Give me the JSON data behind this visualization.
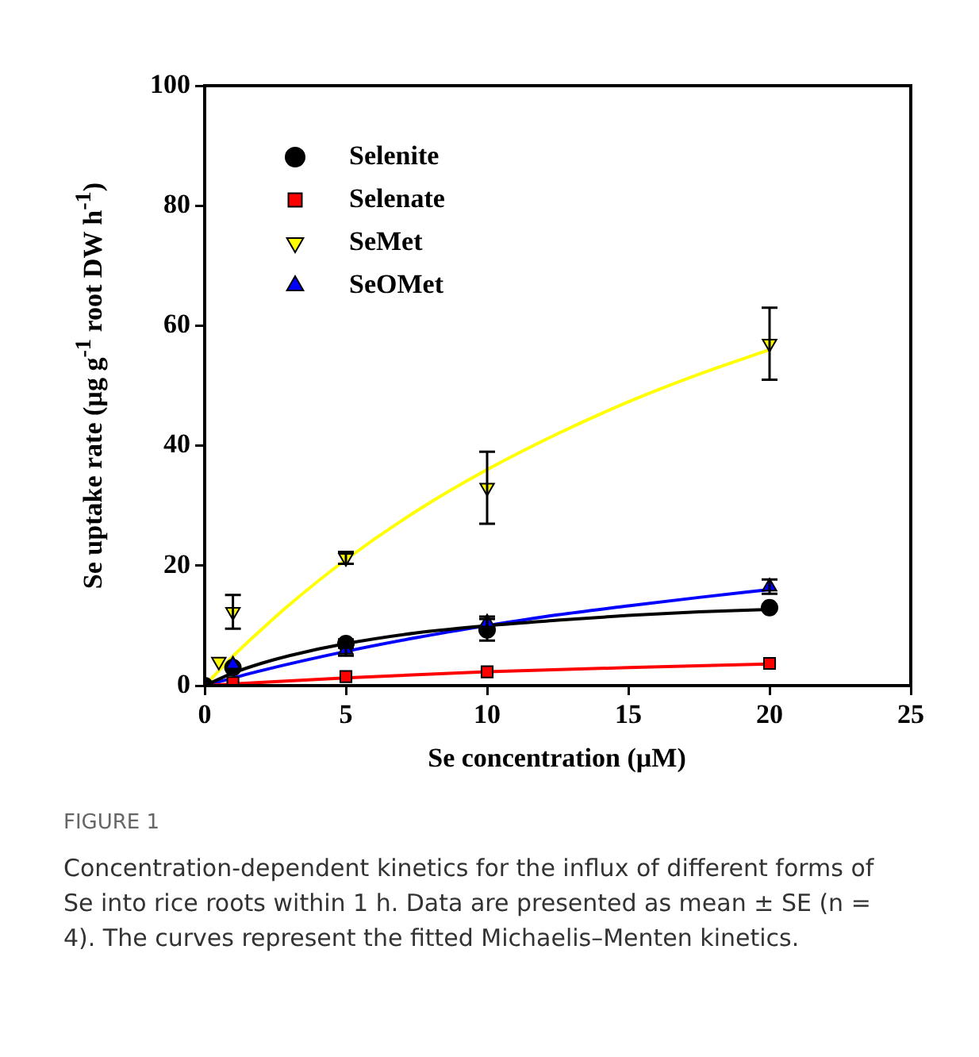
{
  "chart_data": {
    "type": "scatter",
    "xlabel": "Se concentration (µM)",
    "ylabel": "Se uptake rate (µg g$^{-1}$ root DW h$^{-1}$)",
    "xlim": [
      0,
      25
    ],
    "xticks": [
      0,
      5,
      10,
      15,
      20,
      25
    ],
    "ylim": [
      0,
      100
    ],
    "yticks": [
      0,
      20,
      40,
      60,
      80,
      100
    ],
    "legend": "top left",
    "series": [
      {
        "type": "scatter",
        "name": "Selenite",
        "color": "#000000",
        "marker": "circle",
        "x": [
          0,
          1,
          5,
          10,
          20
        ],
        "values": [
          0,
          3,
          7,
          9.3,
          13
        ],
        "errors": [
          null,
          null,
          0.7,
          1.8,
          null
        ]
      },
      {
        "type": "scatter",
        "name": "Selenate",
        "color": "#ff0000",
        "marker": "square",
        "x": [
          1,
          5,
          10,
          20
        ],
        "values": [
          0.5,
          1.5,
          2.3,
          3.7
        ],
        "errors": [
          null,
          null,
          null,
          null
        ]
      },
      {
        "type": "scatter",
        "name": "SeMet",
        "color": "#ffff00",
        "marker": "triangle-down",
        "x": [
          0.5,
          1,
          5,
          10,
          20
        ],
        "values": [
          4,
          12.3,
          21.3,
          33,
          57
        ],
        "errors": [
          null,
          2.8,
          1,
          6,
          6
        ]
      },
      {
        "type": "scatter",
        "name": "SeOMet",
        "color": "#0000ff",
        "marker": "triangle",
        "x": [
          1,
          5,
          10,
          20
        ],
        "values": [
          3.5,
          6,
          10.5,
          16.5
        ],
        "errors": [
          null,
          1,
          1,
          1.2
        ]
      },
      {
        "type": "line",
        "color": "#000000",
        "marker": "none",
        "x": [
          0,
          1,
          2,
          3,
          5,
          7.5,
          10,
          12.5,
          15,
          17.5,
          20
        ],
        "values": [
          0,
          2.1,
          3.7,
          5,
          7,
          8.8,
          10,
          10.9,
          11.7,
          12.3,
          12.7
        ]
      },
      {
        "type": "line",
        "color": "#ff0000",
        "marker": "none",
        "x": [
          0,
          5,
          10,
          15,
          20
        ],
        "values": [
          0,
          1.3,
          2.3,
          3,
          3.6
        ]
      },
      {
        "type": "line",
        "color": "#ffff00",
        "marker": "none",
        "x": [
          0,
          1,
          2,
          3,
          5,
          7.5,
          10,
          12.5,
          15,
          17.5,
          20
        ],
        "values": [
          0,
          4.9,
          9.3,
          13.5,
          21,
          29.1,
          36,
          42,
          47.3,
          51.9,
          56
        ]
      },
      {
        "type": "line",
        "color": "#0000ff",
        "marker": "none",
        "x": [
          0,
          2,
          5,
          7.5,
          10,
          12.5,
          15,
          17.5,
          20
        ],
        "values": [
          0,
          2.5,
          5.7,
          8,
          10,
          11.8,
          13.3,
          14.7,
          16
        ]
      }
    ],
    "annotations": [
      "FIGURE 1",
      "Concentration-dependent kinetics for the influx of different forms of Se into rice roots within 1 h. Data are presented as mean ± SE (n = 4). The curves represent the fitted Michaelis–Menten kinetics."
    ]
  }
}
